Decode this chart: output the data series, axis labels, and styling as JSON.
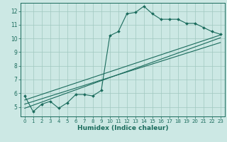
{
  "xlabel": "Humidex (Indice chaleur)",
  "bg_color": "#cce8e4",
  "line_color": "#1a6b5c",
  "grid_color": "#a0c8c0",
  "xlim": [
    -0.5,
    23.5
  ],
  "ylim": [
    4.3,
    12.6
  ],
  "xticks": [
    0,
    1,
    2,
    3,
    4,
    5,
    6,
    7,
    8,
    9,
    10,
    11,
    12,
    13,
    14,
    15,
    16,
    17,
    18,
    19,
    20,
    21,
    22,
    23
  ],
  "yticks": [
    5,
    6,
    7,
    8,
    9,
    10,
    11,
    12
  ],
  "main_data_x": [
    0,
    1,
    2,
    3,
    4,
    5,
    6,
    7,
    8,
    9,
    10,
    11,
    12,
    13,
    14,
    15,
    16,
    17,
    18,
    19,
    20,
    21,
    22,
    23
  ],
  "main_data_y": [
    5.8,
    4.65,
    5.2,
    5.4,
    4.9,
    5.3,
    5.9,
    5.9,
    5.8,
    6.2,
    10.2,
    10.5,
    11.8,
    11.9,
    12.35,
    11.8,
    11.4,
    11.4,
    11.4,
    11.1,
    11.1,
    10.8,
    10.5,
    10.3
  ],
  "line1_x": [
    0,
    23
  ],
  "line1_y": [
    5.5,
    10.25
  ],
  "line2_x": [
    0,
    23
  ],
  "line2_y": [
    5.2,
    9.7
  ],
  "line3_x": [
    0,
    23
  ],
  "line3_y": [
    4.9,
    10.05
  ]
}
